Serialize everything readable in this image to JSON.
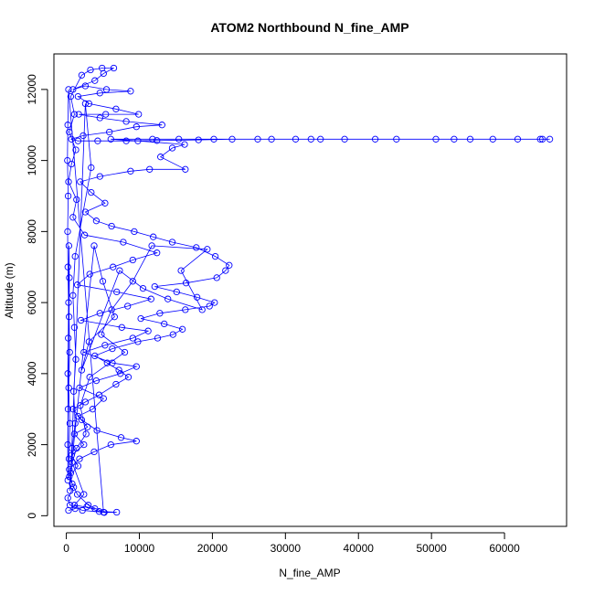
{
  "chart_data": {
    "type": "scatter",
    "title": "ATOM2 Northbound N_fine_AMP",
    "xlabel": "N_fine_AMP",
    "ylabel": "Altitude (m)",
    "xlim": [
      -1700,
      68500
    ],
    "ylim": [
      -300,
      13000
    ],
    "x_ticks": [
      0,
      10000,
      20000,
      30000,
      40000,
      50000,
      60000
    ],
    "y_ticks": [
      0,
      2000,
      4000,
      6000,
      8000,
      10000,
      12000
    ],
    "style": {
      "series_color": "#0000ff",
      "marker": "open-circle",
      "connected_by_lines": true,
      "grid": false,
      "legend": "none"
    },
    "series": [
      {
        "name": "",
        "points": [
          [
            300,
            150
          ],
          [
            1200,
            200
          ],
          [
            2800,
            250
          ],
          [
            4500,
            120
          ],
          [
            6900,
            100
          ],
          [
            5200,
            90
          ],
          [
            3000,
            300
          ],
          [
            1500,
            600
          ],
          [
            800,
            900
          ],
          [
            400,
            1300
          ],
          [
            1800,
            1600
          ],
          [
            3800,
            1800
          ],
          [
            6100,
            2000
          ],
          [
            9600,
            2100
          ],
          [
            7500,
            2200
          ],
          [
            4200,
            2400
          ],
          [
            2100,
            2700
          ],
          [
            900,
            3000
          ],
          [
            2600,
            3200
          ],
          [
            4500,
            3400
          ],
          [
            6800,
            3700
          ],
          [
            8500,
            3900
          ],
          [
            7200,
            4100
          ],
          [
            5600,
            4300
          ],
          [
            3900,
            4500
          ],
          [
            6300,
            4700
          ],
          [
            9800,
            4900
          ],
          [
            12500,
            5000
          ],
          [
            14600,
            5100
          ],
          [
            15900,
            5250
          ],
          [
            13400,
            5400
          ],
          [
            10200,
            5550
          ],
          [
            12800,
            5700
          ],
          [
            16300,
            5800
          ],
          [
            19600,
            5900
          ],
          [
            20300,
            6000
          ],
          [
            17900,
            6150
          ],
          [
            15100,
            6300
          ],
          [
            12100,
            6450
          ],
          [
            16400,
            6550
          ],
          [
            20600,
            6700
          ],
          [
            21800,
            6900
          ],
          [
            22300,
            7050
          ],
          [
            20400,
            7300
          ],
          [
            17800,
            7550
          ],
          [
            14500,
            7700
          ],
          [
            11900,
            7850
          ],
          [
            9300,
            8000
          ],
          [
            6200,
            8150
          ],
          [
            4100,
            8300
          ],
          [
            2600,
            8550
          ],
          [
            5300,
            8800
          ],
          [
            3400,
            9100
          ],
          [
            1900,
            9400
          ],
          [
            4600,
            9550
          ],
          [
            8800,
            9700
          ],
          [
            11400,
            9750
          ],
          [
            16300,
            9750
          ],
          [
            12900,
            10100
          ],
          [
            14500,
            10350
          ],
          [
            16200,
            10450
          ],
          [
            9800,
            10550
          ],
          [
            6100,
            10600
          ],
          [
            11800,
            10600
          ],
          [
            15400,
            10600
          ],
          [
            20200,
            10600
          ],
          [
            26200,
            10600
          ],
          [
            31400,
            10600
          ],
          [
            34800,
            10600
          ],
          [
            38100,
            10600
          ],
          [
            45200,
            10600
          ],
          [
            50600,
            10600
          ],
          [
            53100,
            10600
          ],
          [
            58400,
            10600
          ],
          [
            61800,
            10600
          ],
          [
            64900,
            10600
          ],
          [
            66200,
            10600
          ],
          [
            65200,
            10600
          ],
          [
            55300,
            10600
          ],
          [
            42300,
            10600
          ],
          [
            33500,
            10600
          ],
          [
            28100,
            10600
          ],
          [
            22700,
            10600
          ],
          [
            18100,
            10580
          ],
          [
            12400,
            10560
          ],
          [
            8200,
            10550
          ],
          [
            4300,
            10550
          ],
          [
            1600,
            10550
          ],
          [
            700,
            10600
          ],
          [
            2300,
            10700
          ],
          [
            5900,
            10800
          ],
          [
            9600,
            10950
          ],
          [
            13100,
            11000
          ],
          [
            8200,
            11100
          ],
          [
            4600,
            11200
          ],
          [
            1700,
            11300
          ],
          [
            5400,
            11300
          ],
          [
            9900,
            11300
          ],
          [
            6800,
            11450
          ],
          [
            3100,
            11600
          ],
          [
            1600,
            11800
          ],
          [
            4600,
            11900
          ],
          [
            8800,
            11950
          ],
          [
            5500,
            12000
          ],
          [
            2600,
            12100
          ],
          [
            900,
            12000
          ],
          [
            3900,
            12250
          ],
          [
            5100,
            12450
          ],
          [
            6500,
            12600
          ],
          [
            4900,
            12600
          ],
          [
            3300,
            12550
          ],
          [
            2100,
            12400
          ],
          [
            600,
            11800
          ],
          [
            1100,
            11300
          ],
          [
            400,
            10800
          ],
          [
            1300,
            10300
          ],
          [
            700,
            9900
          ],
          [
            300,
            9400
          ],
          [
            1400,
            8900
          ],
          [
            900,
            8400
          ],
          [
            2500,
            7900
          ],
          [
            7800,
            7700
          ],
          [
            12400,
            7400
          ],
          [
            9100,
            7200
          ],
          [
            6400,
            7000
          ],
          [
            3200,
            6800
          ],
          [
            1500,
            6500
          ],
          [
            6900,
            6300
          ],
          [
            11600,
            6100
          ],
          [
            8400,
            5900
          ],
          [
            4600,
            5700
          ],
          [
            2000,
            5500
          ],
          [
            7600,
            5300
          ],
          [
            11200,
            5200
          ],
          [
            9100,
            5000
          ],
          [
            5300,
            4800
          ],
          [
            2400,
            4600
          ],
          [
            6300,
            4300
          ],
          [
            9600,
            4200
          ],
          [
            7400,
            4000
          ],
          [
            4100,
            3800
          ],
          [
            1800,
            3600
          ],
          [
            5100,
            3300
          ],
          [
            3600,
            3000
          ],
          [
            1600,
            2800
          ],
          [
            2900,
            2500
          ],
          [
            1100,
            2300
          ],
          [
            2400,
            2000
          ],
          [
            700,
            1700
          ],
          [
            1600,
            1400
          ],
          [
            400,
            1100
          ],
          [
            1000,
            800
          ],
          [
            200,
            500
          ],
          [
            500,
            300
          ],
          [
            2200,
            150
          ],
          [
            5100,
            100
          ],
          [
            300,
            12000
          ],
          [
            200,
            11000
          ],
          [
            150,
            10000
          ],
          [
            250,
            9000
          ],
          [
            180,
            8000
          ],
          [
            220,
            7000
          ],
          [
            300,
            6000
          ],
          [
            260,
            5000
          ],
          [
            200,
            4000
          ],
          [
            240,
            3000
          ],
          [
            190,
            2000
          ],
          [
            210,
            1000
          ],
          [
            350,
            7600
          ],
          [
            420,
            6700
          ],
          [
            380,
            5600
          ],
          [
            450,
            4600
          ],
          [
            330,
            3600
          ],
          [
            480,
            2600
          ],
          [
            360,
            1600
          ],
          [
            520,
            700
          ],
          [
            2600,
            11600
          ],
          [
            3400,
            9800
          ],
          [
            1200,
            7300
          ],
          [
            900,
            6200
          ],
          [
            1100,
            5300
          ],
          [
            1300,
            4400
          ],
          [
            1000,
            3500
          ],
          [
            1200,
            2600
          ],
          [
            800,
            1900
          ],
          [
            600,
            1200
          ],
          [
            3800,
            7600
          ],
          [
            5000,
            6600
          ],
          [
            6600,
            5600
          ],
          [
            3100,
            4900
          ],
          [
            2100,
            4100
          ],
          [
            7300,
            6900
          ],
          [
            10500,
            6400
          ],
          [
            13900,
            6100
          ],
          [
            18600,
            5800
          ],
          [
            15700,
            6900
          ],
          [
            19300,
            7500
          ],
          [
            11700,
            7600
          ],
          [
            9100,
            6600
          ],
          [
            6200,
            5800
          ],
          [
            4800,
            5100
          ],
          [
            8000,
            4600
          ],
          [
            3200,
            3900
          ],
          [
            1900,
            3100
          ],
          [
            2700,
            2300
          ],
          [
            1400,
            1900
          ],
          [
            800,
            1500
          ],
          [
            2400,
            600
          ],
          [
            1100,
            300
          ],
          [
            3900,
            200
          ]
        ]
      }
    ]
  }
}
